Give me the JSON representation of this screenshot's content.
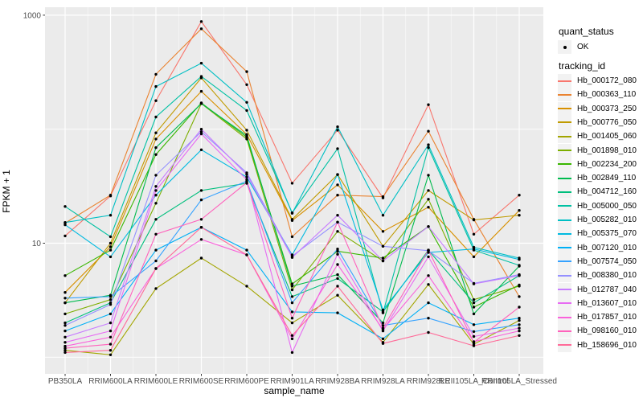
{
  "chart_data": {
    "type": "line",
    "title": "",
    "xlabel": "sample_name",
    "ylabel": "FPKM + 1",
    "y_scale": "log10",
    "y_tick_labels": [
      "10",
      "1000"
    ],
    "y_tick_values": [
      10,
      1000
    ],
    "y_grid_major": [
      10,
      1000
    ],
    "y_grid_minor": [
      1,
      100
    ],
    "ylim": [
      0.75,
      1150
    ],
    "grid": true,
    "legend_position": "right",
    "x_categories": [
      "PB350LA",
      "RRIM600LA",
      "RRIM600LE",
      "RRIM600SE",
      "RRIM600PE",
      "RRIM901LA",
      "RRIM928BA",
      "RRIM928LA",
      "RRIM928LE",
      "RRII105LA_Control",
      "RRII105LA_Stressed"
    ],
    "legend": {
      "quant_title": "quant_status",
      "quant_value": "OK",
      "series_title": "tracking_id"
    },
    "colors": {
      "panel_bg": "#EBEBEB",
      "grid": "#FFFFFF",
      "axis_text": "#4D4D4D",
      "tick_mark": "#333333",
      "point": "#000000",
      "legend_key_bg": "#F2F2F2"
    },
    "series": [
      {
        "name": "Hb_000172_080",
        "color": "#F8766D",
        "values": [
          11.6,
          26.0,
          178,
          880,
          246,
          33.6,
          98,
          25.0,
          164,
          12.0,
          26.4
        ]
      },
      {
        "name": "Hb_000363_110",
        "color": "#EA8331",
        "values": [
          15.0,
          26.4,
          303,
          760,
          320,
          11.4,
          26.4,
          25.6,
          96,
          16.2,
          3.4
        ]
      },
      {
        "name": "Hb_000373_250",
        "color": "#D89000",
        "values": [
          3.7,
          9.3,
          82,
          215,
          90,
          15.8,
          32.5,
          12.7,
          20.7,
          7.6,
          19.4
        ]
      },
      {
        "name": "Hb_000776_050",
        "color": "#C09B00",
        "values": [
          3.0,
          10.0,
          93,
          282,
          98,
          16.2,
          40,
          9.4,
          29,
          16.0,
          17.6
        ]
      },
      {
        "name": "Hb_001405_060",
        "color": "#A3A500",
        "values": [
          1.15,
          1.05,
          4.0,
          7.4,
          4.2,
          2.0,
          3.5,
          1.35,
          4.35,
          1.3,
          2.1
        ]
      },
      {
        "name": "Hb_001898_010",
        "color": "#7CAE00",
        "values": [
          2.4,
          3.2,
          22.4,
          168,
          82,
          3.9,
          12.7,
          7.0,
          24.3,
          3.2,
          4.2
        ]
      },
      {
        "name": "Hb_002234_200",
        "color": "#39B600",
        "values": [
          5.2,
          8.7,
          60,
          170,
          85,
          4.4,
          8.5,
          7.4,
          14.0,
          2.75,
          4.3
        ]
      },
      {
        "name": "Hb_002849_110",
        "color": "#00BB4E",
        "values": [
          3.0,
          3.5,
          69,
          168,
          88,
          4.2,
          5.3,
          2.0,
          39.5,
          2.4,
          6.3
        ]
      },
      {
        "name": "Hb_004712_160",
        "color": "#00BF7D",
        "values": [
          2.0,
          3.0,
          16.2,
          29,
          33.5,
          3.4,
          4.9,
          2.5,
          8.7,
          3.0,
          5.2
        ]
      },
      {
        "name": "Hb_005000_050",
        "color": "#00C1A3",
        "values": [
          21.0,
          11.4,
          128,
          290,
          146,
          18.5,
          67.5,
          2.45,
          69,
          8.7,
          6.4
        ]
      },
      {
        "name": "Hb_005282_010",
        "color": "#00BFC4",
        "values": [
          15.2,
          17.6,
          237,
          379,
          172,
          18.3,
          105,
          17.6,
          73,
          9.2,
          7.4
        ]
      },
      {
        "name": "Hb_005375_070",
        "color": "#00BAE0",
        "values": [
          14.5,
          7.6,
          26.4,
          66,
          38,
          7.9,
          40,
          2.6,
          8.3,
          8.9,
          7.2
        ]
      },
      {
        "name": "Hb_007120_010",
        "color": "#00B0F6",
        "values": [
          1.7,
          2.4,
          8.7,
          13.8,
          8.7,
          2.5,
          2.45,
          1.45,
          3.0,
          1.93,
          2.2
        ]
      },
      {
        "name": "Hb_007574_050",
        "color": "#35A2FF",
        "values": [
          3.3,
          3.4,
          7.0,
          24,
          35,
          3.0,
          8.9,
          1.9,
          2.2,
          1.68,
          1.93
        ]
      },
      {
        "name": "Hb_008380_010",
        "color": "#9590FF",
        "values": [
          1.9,
          2.9,
          39.5,
          95,
          41.5,
          7.7,
          15.3,
          9.4,
          8.6,
          4.45,
          5.3
        ]
      },
      {
        "name": "Hb_012787_040",
        "color": "#C77CFF",
        "values": [
          1.5,
          2.0,
          31.5,
          100,
          40,
          7.5,
          17.6,
          7.0,
          14.0,
          4.4,
          5.2
        ]
      },
      {
        "name": "Hb_013607_010",
        "color": "#E76BF3",
        "values": [
          1.35,
          1.7,
          29,
          91,
          36,
          1.1,
          8.0,
          1.7,
          7.6,
          1.52,
          1.8
        ]
      },
      {
        "name": "Hb_017857_010",
        "color": "#FA62DB",
        "values": [
          1.25,
          1.5,
          6.0,
          10.8,
          7.9,
          1.45,
          6.5,
          1.75,
          5.2,
          1.37,
          1.7
        ]
      },
      {
        "name": "Hb_098160_010",
        "color": "#FF62BC",
        "values": [
          1.2,
          1.3,
          12.0,
          16.2,
          34,
          2.2,
          15.3,
          1.8,
          8.7,
          1.35,
          2.75
        ]
      },
      {
        "name": "Hb_158696_010",
        "color": "#FF6A98",
        "values": [
          1.1,
          1.15,
          6.0,
          13.8,
          7.9,
          1.55,
          4.2,
          1.32,
          1.65,
          1.26,
          1.55
        ]
      }
    ]
  }
}
